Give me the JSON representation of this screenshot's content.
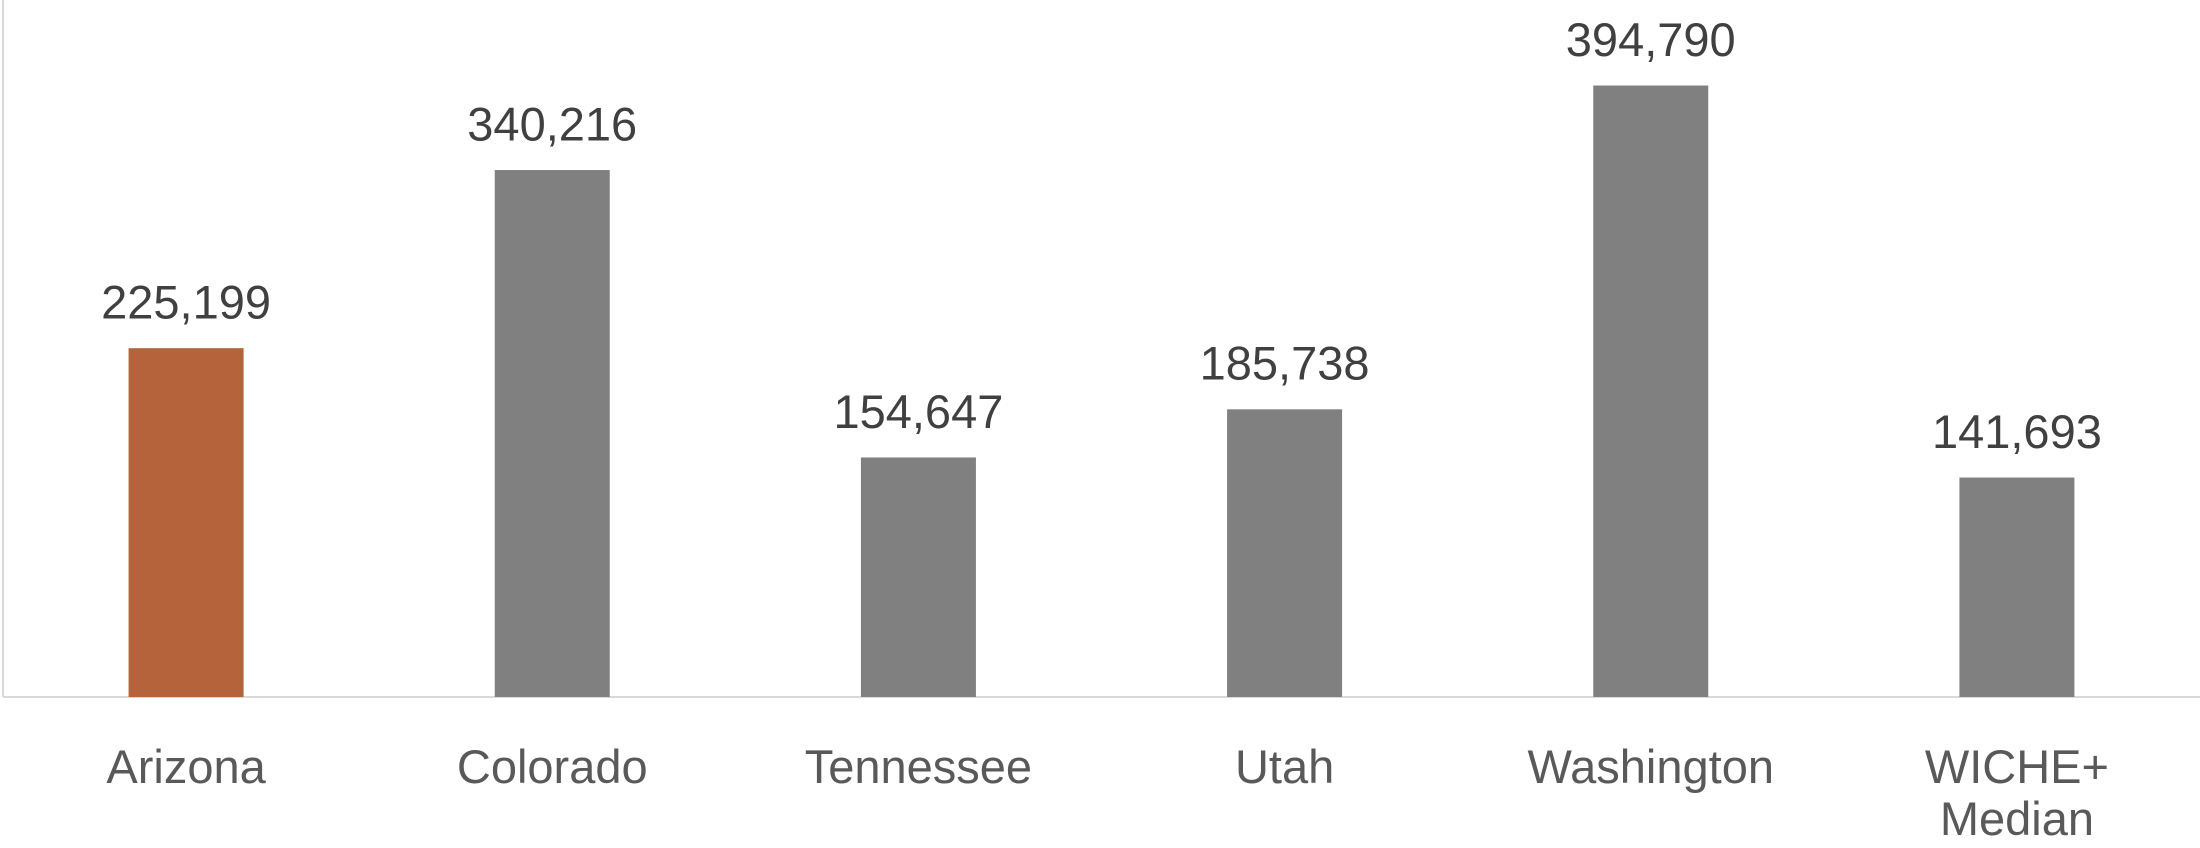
{
  "chart_data": {
    "type": "bar",
    "categories": [
      "Arizona",
      "Colorado",
      "Tennessee",
      "Utah",
      "Washington",
      "WICHE+ Median"
    ],
    "values": [
      225199,
      340216,
      154647,
      185738,
      394790,
      141693
    ],
    "value_labels": [
      "225,199",
      "340,216",
      "154,647",
      "185,738",
      "394,790",
      "141,693"
    ],
    "colors": [
      "#b4633a",
      "#808080",
      "#808080",
      "#808080",
      "#808080",
      "#808080"
    ],
    "ylim": [
      0,
      450000
    ]
  }
}
